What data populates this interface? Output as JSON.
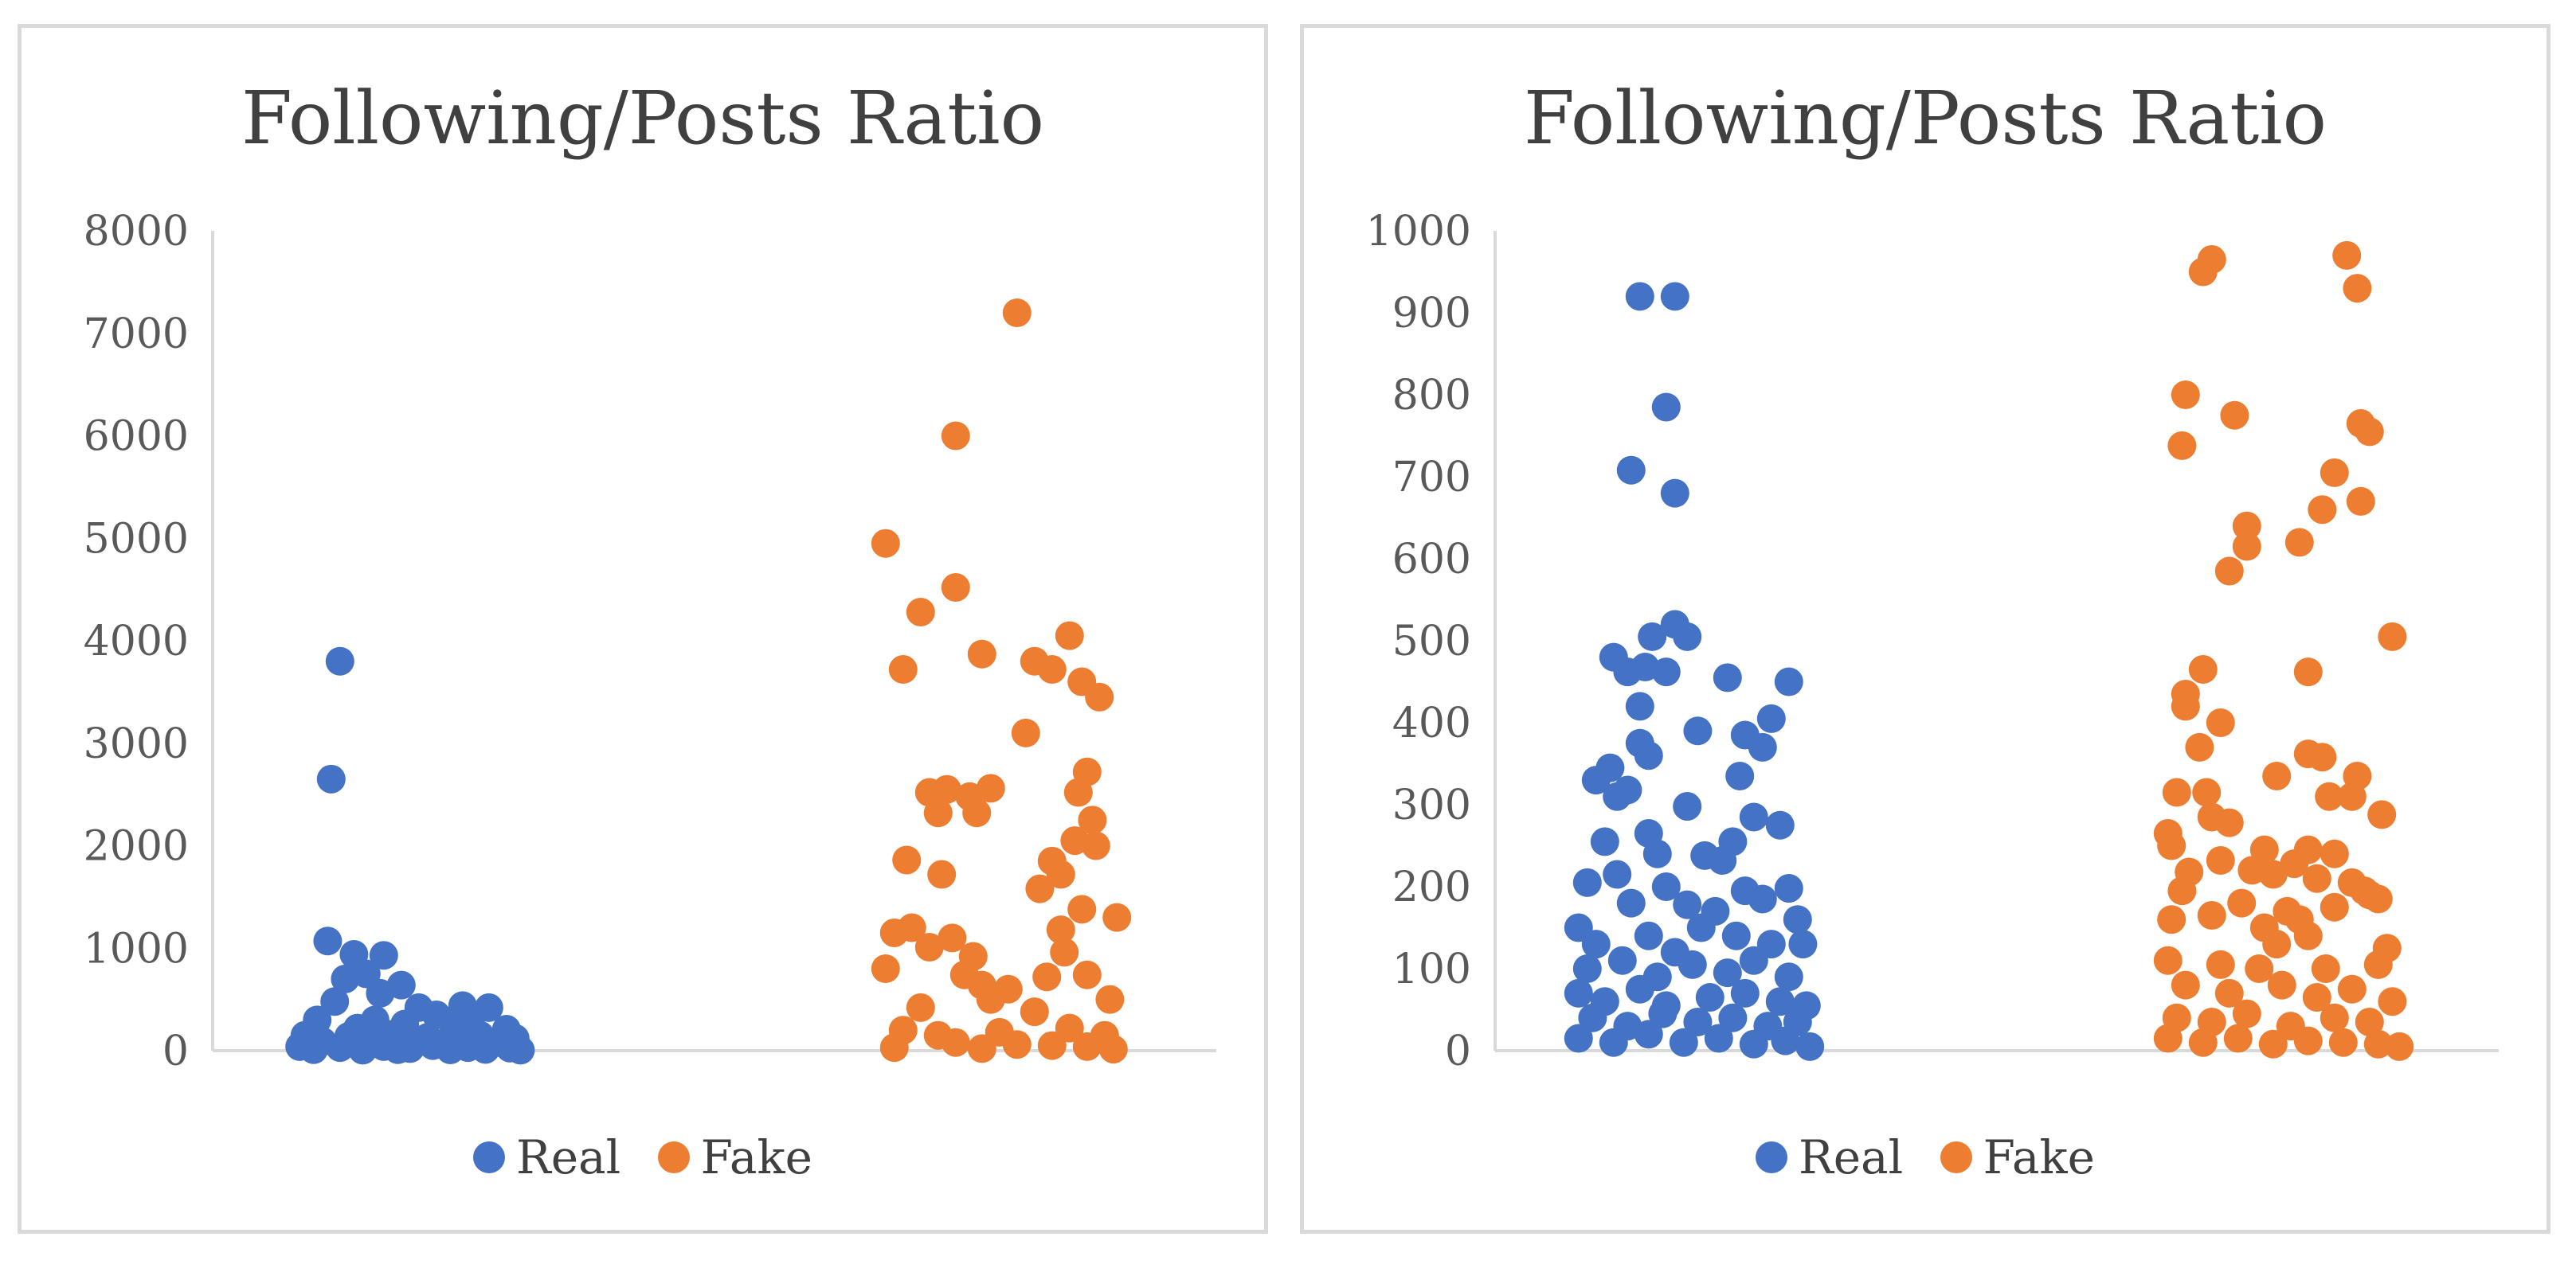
{
  "chart_data": [
    {
      "type": "scatter",
      "title": "Following/Posts Ratio",
      "xlabel": "",
      "ylabel": "",
      "ylim": [
        0,
        8000
      ],
      "yticks": [
        "0",
        "1000",
        "2000",
        "3000",
        "4000",
        "5000",
        "6000",
        "7000",
        "8000"
      ],
      "legend_position": "bottom",
      "grid": false,
      "series": [
        {
          "name": "Real",
          "color": "#4472c4",
          "points": [
            [
              0.25,
              3800
            ],
            [
              0.2,
              2650
            ],
            [
              0.18,
              1070
            ],
            [
              0.33,
              940
            ],
            [
              0.5,
              930
            ],
            [
              0.4,
              750
            ],
            [
              0.28,
              700
            ],
            [
              0.6,
              640
            ],
            [
              0.48,
              560
            ],
            [
              0.22,
              480
            ],
            [
              0.7,
              420
            ],
            [
              0.95,
              440
            ],
            [
              1.1,
              420
            ],
            [
              0.8,
              350
            ],
            [
              1.0,
              330
            ],
            [
              0.12,
              300
            ],
            [
              0.45,
              300
            ],
            [
              0.62,
              260
            ],
            [
              0.35,
              220
            ],
            [
              0.9,
              230
            ],
            [
              1.2,
              210
            ],
            [
              0.05,
              150
            ],
            [
              0.3,
              140
            ],
            [
              0.55,
              160
            ],
            [
              0.75,
              130
            ],
            [
              1.05,
              150
            ],
            [
              1.25,
              120
            ],
            [
              0.15,
              90
            ],
            [
              0.42,
              80
            ],
            [
              0.68,
              95
            ],
            [
              0.85,
              70
            ],
            [
              1.15,
              80
            ],
            [
              0.02,
              40
            ],
            [
              0.25,
              30
            ],
            [
              0.5,
              40
            ],
            [
              0.65,
              20
            ],
            [
              0.78,
              50
            ],
            [
              0.98,
              30
            ],
            [
              1.22,
              25
            ],
            [
              0.1,
              10
            ],
            [
              0.38,
              5
            ],
            [
              0.58,
              10
            ],
            [
              0.88,
              8
            ],
            [
              1.08,
              12
            ],
            [
              1.28,
              5
            ]
          ]
        },
        {
          "name": "Fake",
          "color": "#ed7d31",
          "points": [
            [
              0.75,
              7200
            ],
            [
              0.4,
              6000
            ],
            [
              0.0,
              4950
            ],
            [
              0.2,
              4280
            ],
            [
              0.4,
              4520
            ],
            [
              0.1,
              3720
            ],
            [
              0.55,
              3870
            ],
            [
              0.85,
              3800
            ],
            [
              0.95,
              3720
            ],
            [
              1.05,
              4050
            ],
            [
              1.12,
              3600
            ],
            [
              1.22,
              3450
            ],
            [
              0.8,
              3100
            ],
            [
              1.15,
              2720
            ],
            [
              0.25,
              2520
            ],
            [
              0.35,
              2550
            ],
            [
              0.3,
              2320
            ],
            [
              0.48,
              2480
            ],
            [
              0.6,
              2560
            ],
            [
              0.52,
              2320
            ],
            [
              1.1,
              2520
            ],
            [
              1.18,
              2250
            ],
            [
              0.32,
              1720
            ],
            [
              1.08,
              2050
            ],
            [
              1.2,
              2000
            ],
            [
              0.12,
              1860
            ],
            [
              0.95,
              1850
            ],
            [
              0.88,
              1580
            ],
            [
              1.0,
              1720
            ],
            [
              1.12,
              1380
            ],
            [
              1.32,
              1300
            ],
            [
              0.15,
              1200
            ],
            [
              0.05,
              1150
            ],
            [
              0.25,
              1010
            ],
            [
              0.38,
              1100
            ],
            [
              1.0,
              1180
            ],
            [
              0.5,
              920
            ],
            [
              1.02,
              960
            ],
            [
              0.45,
              740
            ],
            [
              0.55,
              640
            ],
            [
              0.7,
              600
            ],
            [
              0.92,
              720
            ],
            [
              1.15,
              740
            ],
            [
              0.0,
              800
            ],
            [
              1.28,
              500
            ],
            [
              0.6,
              500
            ],
            [
              0.2,
              420
            ],
            [
              0.85,
              380
            ],
            [
              0.1,
              200
            ],
            [
              0.3,
              150
            ],
            [
              0.65,
              180
            ],
            [
              1.05,
              220
            ],
            [
              1.25,
              150
            ],
            [
              0.4,
              80
            ],
            [
              0.75,
              60
            ],
            [
              0.95,
              50
            ],
            [
              1.15,
              40
            ],
            [
              0.05,
              30
            ],
            [
              0.55,
              20
            ],
            [
              1.3,
              15
            ]
          ]
        }
      ]
    },
    {
      "type": "scatter",
      "title": "Following/Posts Ratio",
      "xlabel": "",
      "ylabel": "",
      "ylim": [
        0,
        1000
      ],
      "yticks": [
        "0",
        "100",
        "200",
        "300",
        "400",
        "500",
        "600",
        "700",
        "800",
        "900",
        "1000"
      ],
      "legend_position": "bottom",
      "grid": false,
      "series": [
        {
          "name": "Real",
          "color": "#4472c4",
          "points": [
            [
              0.35,
              920
            ],
            [
              0.55,
              920
            ],
            [
              0.5,
              785
            ],
            [
              0.3,
              708
            ],
            [
              0.55,
              680
            ],
            [
              0.42,
              505
            ],
            [
              0.55,
              520
            ],
            [
              0.62,
              505
            ],
            [
              0.2,
              480
            ],
            [
              0.38,
              468
            ],
            [
              0.28,
              462
            ],
            [
              0.5,
              462
            ],
            [
              0.85,
              455
            ],
            [
              1.2,
              450
            ],
            [
              0.35,
              420
            ],
            [
              1.1,
              405
            ],
            [
              0.68,
              390
            ],
            [
              0.95,
              385
            ],
            [
              1.05,
              370
            ],
            [
              0.35,
              375
            ],
            [
              0.4,
              360
            ],
            [
              0.18,
              345
            ],
            [
              0.1,
              330
            ],
            [
              0.22,
              310
            ],
            [
              0.28,
              318
            ],
            [
              0.92,
              335
            ],
            [
              0.62,
              298
            ],
            [
              1.0,
              285
            ],
            [
              1.15,
              275
            ],
            [
              0.4,
              265
            ],
            [
              0.15,
              255
            ],
            [
              0.45,
              240
            ],
            [
              0.72,
              238
            ],
            [
              0.82,
              232
            ],
            [
              0.88,
              255
            ],
            [
              0.22,
              215
            ],
            [
              0.05,
              205
            ],
            [
              0.5,
              200
            ],
            [
              0.95,
              195
            ],
            [
              1.2,
              198
            ],
            [
              0.3,
              180
            ],
            [
              0.62,
              178
            ],
            [
              0.78,
              170
            ],
            [
              1.05,
              185
            ],
            [
              1.25,
              160
            ],
            [
              0.0,
              150
            ],
            [
              0.1,
              130
            ],
            [
              0.4,
              140
            ],
            [
              0.55,
              120
            ],
            [
              0.7,
              150
            ],
            [
              0.9,
              140
            ],
            [
              1.1,
              130
            ],
            [
              1.28,
              130
            ],
            [
              0.05,
              100
            ],
            [
              0.25,
              110
            ],
            [
              0.45,
              90
            ],
            [
              0.65,
              105
            ],
            [
              0.85,
              95
            ],
            [
              1.0,
              110
            ],
            [
              1.2,
              90
            ],
            [
              0.0,
              70
            ],
            [
              0.15,
              60
            ],
            [
              0.35,
              75
            ],
            [
              0.5,
              55
            ],
            [
              0.75,
              65
            ],
            [
              0.95,
              70
            ],
            [
              1.15,
              60
            ],
            [
              1.3,
              55
            ],
            [
              0.08,
              40
            ],
            [
              0.28,
              30
            ],
            [
              0.48,
              45
            ],
            [
              0.68,
              35
            ],
            [
              0.88,
              40
            ],
            [
              1.08,
              30
            ],
            [
              1.25,
              35
            ],
            [
              0.0,
              15
            ],
            [
              0.2,
              10
            ],
            [
              0.4,
              20
            ],
            [
              0.6,
              10
            ],
            [
              0.8,
              15
            ],
            [
              1.0,
              8
            ],
            [
              1.18,
              12
            ],
            [
              1.32,
              5
            ]
          ]
        },
        {
          "name": "Fake",
          "color": "#ed7d31",
          "points": [
            [
              0.25,
              965
            ],
            [
              0.2,
              950
            ],
            [
              1.02,
              970
            ],
            [
              1.08,
              930
            ],
            [
              0.1,
              800
            ],
            [
              0.38,
              775
            ],
            [
              1.1,
              765
            ],
            [
              1.15,
              755
            ],
            [
              0.08,
              738
            ],
            [
              0.95,
              705
            ],
            [
              1.1,
              670
            ],
            [
              0.88,
              660
            ],
            [
              0.45,
              640
            ],
            [
              0.45,
              615
            ],
            [
              0.75,
              620
            ],
            [
              0.35,
              585
            ],
            [
              1.28,
              505
            ],
            [
              0.2,
              465
            ],
            [
              0.8,
              462
            ],
            [
              0.1,
              435
            ],
            [
              0.1,
              420
            ],
            [
              0.3,
              400
            ],
            [
              0.18,
              370
            ],
            [
              0.8,
              362
            ],
            [
              0.88,
              358
            ],
            [
              0.62,
              335
            ],
            [
              1.08,
              335
            ],
            [
              0.22,
              315
            ],
            [
              0.05,
              315
            ],
            [
              0.92,
              310
            ],
            [
              1.05,
              310
            ],
            [
              0.25,
              285
            ],
            [
              0.35,
              278
            ],
            [
              1.22,
              288
            ],
            [
              0.0,
              265
            ],
            [
              0.02,
              250
            ],
            [
              0.55,
              245
            ],
            [
              0.8,
              245
            ],
            [
              0.3,
              232
            ],
            [
              0.72,
              228
            ],
            [
              0.95,
              240
            ],
            [
              0.12,
              218
            ],
            [
              0.48,
              220
            ],
            [
              0.6,
              215
            ],
            [
              0.85,
              210
            ],
            [
              1.05,
              205
            ],
            [
              1.12,
              195
            ],
            [
              1.2,
              185
            ],
            [
              0.08,
              195
            ],
            [
              0.42,
              180
            ],
            [
              0.68,
              170
            ],
            [
              0.95,
              175
            ],
            [
              1.15,
              190
            ],
            [
              0.02,
              160
            ],
            [
              0.25,
              165
            ],
            [
              0.55,
              150
            ],
            [
              0.75,
              160
            ],
            [
              0.62,
              130
            ],
            [
              0.8,
              140
            ],
            [
              1.25,
              125
            ],
            [
              0.0,
              110
            ],
            [
              0.3,
              105
            ],
            [
              0.52,
              100
            ],
            [
              0.9,
              100
            ],
            [
              1.2,
              105
            ],
            [
              0.1,
              80
            ],
            [
              0.35,
              70
            ],
            [
              0.65,
              80
            ],
            [
              0.85,
              65
            ],
            [
              1.05,
              75
            ],
            [
              1.28,
              60
            ],
            [
              0.05,
              40
            ],
            [
              0.25,
              35
            ],
            [
              0.45,
              45
            ],
            [
              0.7,
              30
            ],
            [
              0.95,
              40
            ],
            [
              1.15,
              35
            ],
            [
              0.0,
              15
            ],
            [
              0.2,
              10
            ],
            [
              0.4,
              15
            ],
            [
              0.6,
              8
            ],
            [
              0.8,
              12
            ],
            [
              1.0,
              10
            ],
            [
              1.2,
              8
            ],
            [
              1.32,
              5
            ]
          ]
        }
      ]
    }
  ]
}
